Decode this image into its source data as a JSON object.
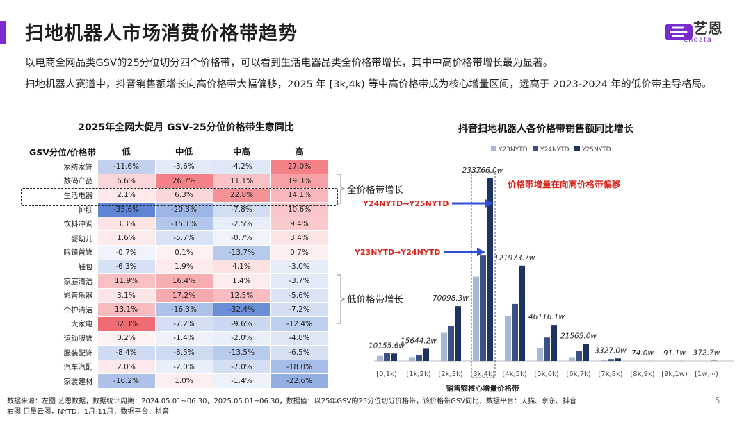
{
  "colors": {
    "accent": "#7b2ccf",
    "neg_strong": "#5b84d3",
    "pos_strong": "#ef5b63",
    "red_annotation": "#d9241b",
    "y23": "#a9b6d6",
    "y24": "#3a4f86",
    "y25": "#1f3363"
  },
  "header": {
    "title": "扫地机器人市场消费价格带趋势",
    "logo_text": "艺恩",
    "logo_sub": "endata"
  },
  "intro": {
    "line1": "以电商全网品类GSV的25分位切分四个价格带，可以看到生活电器品类全价格带增长，其中中高价格带增长最为显著。",
    "line2": "扫地机器人赛道中，抖音销售额增长向高价格带大幅偏移，2025 年 [3k,4k) 等中高价格带成为核心增量区间，远高于 2023-2024 年的低价带主导格局。"
  },
  "table": {
    "title": "2025年全网大促月 GSV-25分位价格带生意同比",
    "row_header": "GSV分位/价格带",
    "columns": [
      "低",
      "中低",
      "中高",
      "高"
    ],
    "rows": [
      {
        "name": "家纺家饰",
        "values": [
          -11.6,
          -3.6,
          -4.2,
          27.0
        ],
        "labels": [
          "-11.6%",
          "-3.6%",
          "-4.2%",
          "27.0%"
        ]
      },
      {
        "name": "数码产品",
        "values": [
          6.6,
          26.7,
          11.1,
          19.3
        ],
        "labels": [
          "6.6%",
          "26.7%",
          "11.1%",
          "19.3%"
        ]
      },
      {
        "name": "生活电器",
        "values": [
          2.1,
          6.3,
          22.8,
          14.1
        ],
        "labels": [
          "2.1%",
          "6.3%",
          "22.8%",
          "14.1%"
        ]
      },
      {
        "name": "护肤",
        "values": [
          -35.6,
          -20.3,
          -7.8,
          10.6
        ],
        "labels": [
          "-35.6%",
          "-20.3%",
          "-7.8%",
          "10.6%"
        ]
      },
      {
        "name": "饮料冲调",
        "values": [
          3.3,
          -15.1,
          -2.5,
          9.4
        ],
        "labels": [
          "3.3%",
          "-15.1%",
          "-2.5%",
          "9.4%"
        ]
      },
      {
        "name": "婴幼儿",
        "values": [
          1.6,
          -5.7,
          -0.7,
          3.4
        ],
        "labels": [
          "1.6%",
          "-5.7%",
          "-0.7%",
          "3.4%"
        ]
      },
      {
        "name": "眼镜首饰",
        "values": [
          -0.7,
          0.1,
          -13.7,
          0.7
        ],
        "labels": [
          "-0.7%",
          "0.1%",
          "-13.7%",
          "0.7%"
        ]
      },
      {
        "name": "鞋包",
        "values": [
          -6.3,
          1.9,
          4.1,
          -3.0
        ],
        "labels": [
          "-6.3%",
          "1.9%",
          "4.1%",
          "-3.0%"
        ]
      },
      {
        "name": "家庭清洁",
        "values": [
          11.9,
          16.4,
          1.4,
          -3.7
        ],
        "labels": [
          "11.9%",
          "16.4%",
          "1.4%",
          "-3.7%"
        ]
      },
      {
        "name": "影音乐器",
        "values": [
          3.1,
          17.2,
          12.5,
          -5.6
        ],
        "labels": [
          "3.1%",
          "17.2%",
          "12.5%",
          "-5.6%"
        ]
      },
      {
        "name": "个护清洁",
        "values": [
          13.1,
          -16.3,
          -32.4,
          -7.2
        ],
        "labels": [
          "13.1%",
          "-16.3%",
          "-32.4%",
          "-7.2%"
        ]
      },
      {
        "name": "大家电",
        "values": [
          32.3,
          -7.2,
          -9.6,
          -12.4
        ],
        "labels": [
          "32.3%",
          "-7.2%",
          "-9.6%",
          "-12.4%"
        ]
      },
      {
        "name": "运动服饰",
        "values": [
          0.2,
          -1.4,
          -2.0,
          -4.8
        ],
        "labels": [
          "0.2%",
          "-1.4%",
          "-2.0%",
          "-4.8%"
        ]
      },
      {
        "name": "服装配饰",
        "values": [
          -8.4,
          -8.5,
          -13.5,
          -6.5
        ],
        "labels": [
          "-8.4%",
          "-8.5%",
          "-13.5%",
          "-6.5%"
        ]
      },
      {
        "name": "汽车汽配",
        "values": [
          2.0,
          -2.0,
          -7.0,
          -18.0
        ],
        "labels": [
          "2.0%",
          "-2.0%",
          "-7.0%",
          "-18.0%"
        ]
      },
      {
        "name": "家装建材",
        "values": [
          -16.2,
          1.0,
          -1.4,
          -22.6
        ],
        "labels": [
          "-16.2%",
          "1.0%",
          "-1.4%",
          "-22.6%"
        ]
      }
    ],
    "brace_all": "全价格带增长",
    "brace_low": "低价格带增长"
  },
  "chart_data": [
    {
      "type": "heatmap",
      "title": "2025年全网大促月 GSV-25分位价格带生意同比",
      "x": [
        "低",
        "中低",
        "中高",
        "高"
      ],
      "y": [
        "家纺家饰",
        "数码产品",
        "生活电器",
        "护肤",
        "饮料冲调",
        "婴幼儿",
        "眼镜首饰",
        "鞋包",
        "家庭清洁",
        "影音乐器",
        "个护清洁",
        "大家电",
        "运动服饰",
        "服装配饰",
        "汽车汽配",
        "家装建材"
      ],
      "unit": "%"
    },
    {
      "type": "bar",
      "title": "抖音扫地机器人各价格带销售额同比增长",
      "categories": [
        "[0,1k)",
        "[1k,2k)",
        "[2k,3k)",
        "[3k,4k)",
        "[4k,5k)",
        "[5k,6k)",
        "[6k,7k)",
        "[7k,8k)",
        "[8k,9k)",
        "[9k,1w)",
        "[1w,∞)"
      ],
      "series": [
        {
          "name": "Y23NYTD",
          "values": [
            6500,
            4200,
            36000,
            108000,
            57000,
            16000,
            4000,
            1800,
            0,
            0,
            0
          ]
        },
        {
          "name": "Y24NYTD",
          "values": [
            10155.6,
            8000,
            45000,
            135000,
            73000,
            30000,
            13000,
            2500,
            0,
            0,
            0
          ]
        },
        {
          "name": "Y25NYTD",
          "values": [
            9500,
            15644.2,
            70098.3,
            233766.0,
            121973.7,
            46116.1,
            21565.0,
            3327.0,
            74.0,
            91.1,
            372.7
          ]
        }
      ],
      "value_labels": [
        "10155.6w",
        "15644.2w",
        "70098.3w",
        "233766.0w",
        "121973.7w",
        "46116.1w",
        "21565.0w",
        "3327.0w",
        "74.0w",
        "91.1w",
        "372.7w"
      ],
      "ylim": [
        0,
        240000
      ],
      "xlabel": "销售额核心增量价格带",
      "annotations": [
        "价格带增量在向高价格带偏移",
        "Y24NYTD→Y25NYTD",
        "Y23NYTD→Y24NYTD"
      ]
    }
  ],
  "footnote": {
    "line1": "数据来源：左图 艺恩数据，数据统计周期：2024.05.01~06.30，2025.05.01~06.30，数据值：以25年GSV的25分位切分价格带，该价格带GSV同比，数据平台：天猫、京东、抖音",
    "line2": "右图 巨量云图，NYTD：1月-11月，数据平台：抖音"
  },
  "page_number": "5"
}
